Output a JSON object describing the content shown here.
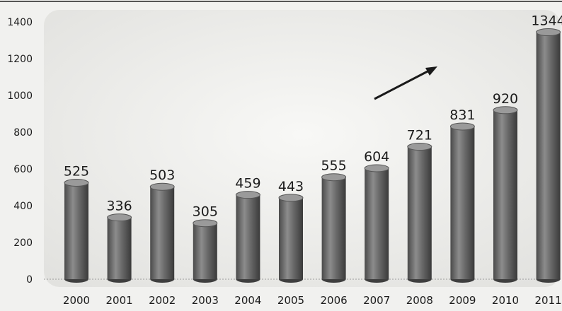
{
  "chart_data": {
    "type": "bar",
    "title": "",
    "xlabel": "",
    "ylabel": "",
    "categories": [
      "2000",
      "2001",
      "2002",
      "2003",
      "2004",
      "2005",
      "2006",
      "2007",
      "2008",
      "2009",
      "2010",
      "2011"
    ],
    "values": [
      525,
      336,
      503,
      305,
      459,
      443,
      555,
      604,
      721,
      831,
      920,
      1344
    ],
    "data_labels": [
      "525",
      "336",
      "503",
      "305",
      "459",
      "443",
      "555",
      "604",
      "721",
      "831",
      "920",
      "1344"
    ],
    "ylim": [
      0,
      1400
    ],
    "y_ticks": [
      "0",
      "200",
      "400",
      "600",
      "800",
      "1000",
      "1200",
      "1400"
    ],
    "bar_style": "3d-cylinder",
    "bar_color": "#6e6e6e",
    "annotation": "upward-trend-arrow",
    "grid": false,
    "legend": "none"
  }
}
